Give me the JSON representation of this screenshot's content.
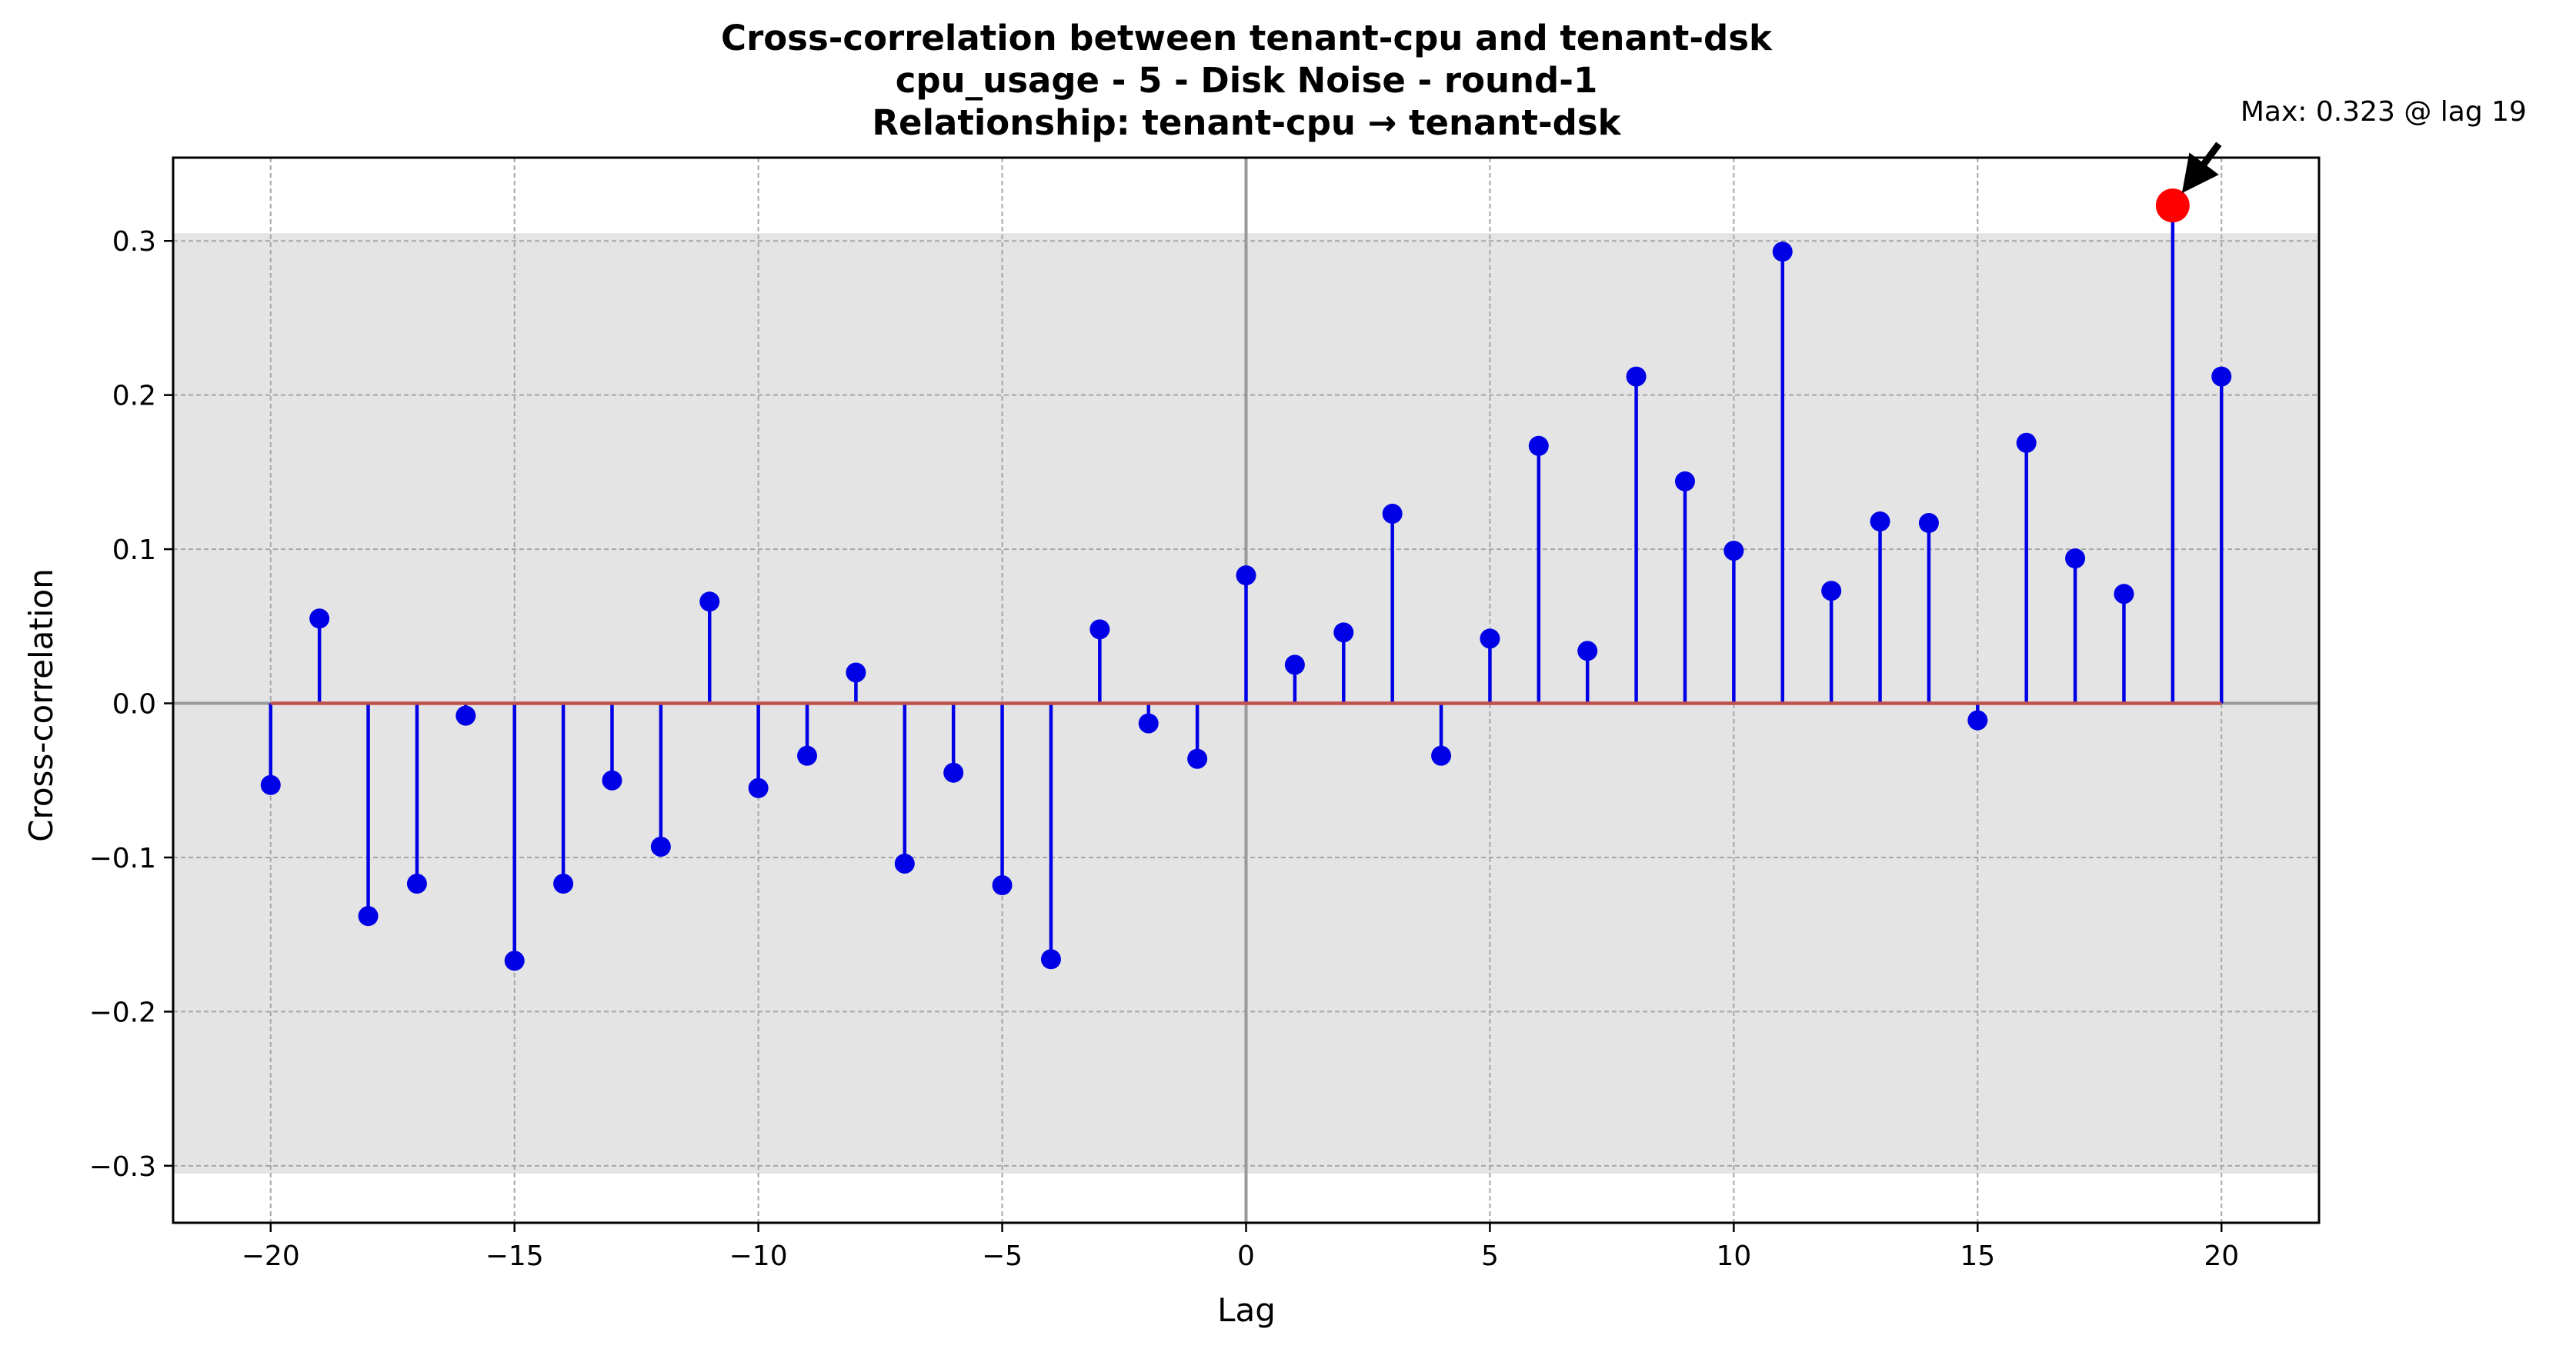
{
  "chart_data": {
    "type": "stem",
    "title_lines": [
      "Cross-correlation between tenant-cpu and tenant-dsk",
      "cpu_usage - 5 - Disk Noise - round-1",
      "Relationship: tenant-cpu → tenant-dsk"
    ],
    "xlabel": "Lag",
    "ylabel": "Cross-correlation",
    "xlim": [
      -22,
      22
    ],
    "ylim": [
      -0.337,
      0.354
    ],
    "xticks": [
      -20,
      -15,
      -10,
      -5,
      0,
      5,
      10,
      15,
      20
    ],
    "xtick_labels": [
      "−20",
      "−15",
      "−10",
      "−5",
      "0",
      "5",
      "10",
      "15",
      "20"
    ],
    "yticks": [
      -0.3,
      -0.2,
      -0.1,
      0.0,
      0.1,
      0.2,
      0.3
    ],
    "ytick_labels": [
      "−0.3",
      "−0.2",
      "−0.1",
      "0.0",
      "0.1",
      "0.2",
      "0.3"
    ],
    "grid": true,
    "confidence_band": [
      -0.305,
      0.305
    ],
    "x": [
      -20,
      -19,
      -18,
      -17,
      -16,
      -15,
      -14,
      -13,
      -12,
      -11,
      -10,
      -9,
      -8,
      -7,
      -6,
      -5,
      -4,
      -3,
      -2,
      -1,
      0,
      1,
      2,
      3,
      4,
      5,
      6,
      7,
      8,
      9,
      10,
      11,
      12,
      13,
      14,
      15,
      16,
      17,
      18,
      19,
      20
    ],
    "values": [
      -0.053,
      0.055,
      -0.138,
      -0.117,
      -0.008,
      -0.167,
      -0.117,
      -0.05,
      -0.093,
      0.066,
      -0.055,
      -0.034,
      0.02,
      -0.104,
      -0.045,
      -0.118,
      -0.166,
      0.048,
      -0.013,
      -0.036,
      0.083,
      0.025,
      0.046,
      0.123,
      -0.034,
      0.042,
      0.167,
      0.034,
      0.212,
      0.144,
      0.099,
      0.293,
      0.073,
      0.118,
      0.117,
      -0.011,
      0.169,
      0.094,
      0.071,
      0.323,
      0.212
    ],
    "max_point": {
      "lag": 19,
      "value": 0.323
    },
    "annotation": "Max: 0.323 @ lag 19",
    "colors": {
      "stem": "#0000e6",
      "marker": "#0000e6",
      "baseline": "#c0504d",
      "max_marker": "#ff0000",
      "band": "#e4e4e4",
      "zero_line": "#999999",
      "grid": "#a6a6a6"
    }
  }
}
